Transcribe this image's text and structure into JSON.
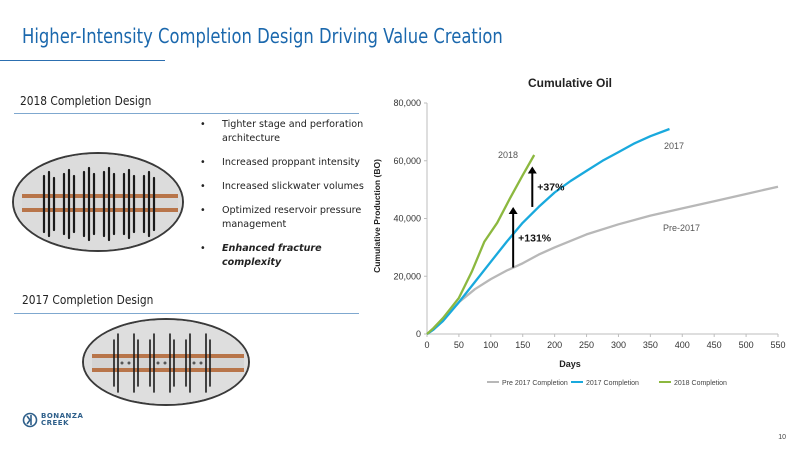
{
  "slide": {
    "title": "Higher-Intensity Completion Design Driving Value Creation",
    "section_2018": "2018 Completion Design",
    "section_2017": "2017 Completion Design",
    "bullets": [
      "Tighter stage and perforation architecture",
      "Increased proppant intensity",
      "Increased slickwater volumes",
      "Optimized reservoir pressure management",
      "Enhanced fracture complexity"
    ],
    "bullet_glyph": "•",
    "logo_line1": "BONANZA",
    "logo_line2": "CREEK",
    "page_number": "10",
    "accent_color": "#1b68ad"
  },
  "chart_data": {
    "type": "line",
    "title": "Cumulative Oil",
    "xlabel": "Days",
    "ylabel": "Cumulative Production (BO)",
    "xlim": [
      0,
      550
    ],
    "ylim": [
      0,
      80000
    ],
    "xticks": [
      "0",
      "50",
      "100",
      "150",
      "200",
      "250",
      "300",
      "350",
      "400",
      "450",
      "500",
      "550"
    ],
    "yticks": [
      "0",
      "20,000",
      "40,000",
      "60,000",
      "80,000"
    ],
    "xtick_values": [
      0,
      50,
      100,
      150,
      200,
      250,
      300,
      350,
      400,
      450,
      500,
      550
    ],
    "ytick_values": [
      0,
      20000,
      40000,
      60000,
      80000
    ],
    "grid": false,
    "legend_position": "bottom",
    "series": [
      {
        "name": "Pre 2017 Completion",
        "label": "Pre-2017",
        "color": "#b8b8b8",
        "x": [
          0,
          10,
          25,
          50,
          75,
          100,
          125,
          150,
          175,
          200,
          250,
          300,
          350,
          400,
          450,
          500,
          550
        ],
        "y": [
          0,
          1500,
          5000,
          11000,
          15500,
          19000,
          22000,
          24500,
          27500,
          30000,
          34500,
          38000,
          41000,
          43500,
          46000,
          48500,
          51000
        ]
      },
      {
        "name": "2017 Completion",
        "label": "2017",
        "color": "#19a9dd",
        "x": [
          0,
          10,
          25,
          50,
          75,
          100,
          125,
          150,
          175,
          200,
          225,
          250,
          275,
          300,
          325,
          350,
          380
        ],
        "y": [
          0,
          1500,
          4500,
          11000,
          18000,
          25000,
          32000,
          38500,
          44000,
          49000,
          53000,
          56500,
          60000,
          63000,
          66000,
          68500,
          71000
        ]
      },
      {
        "name": "2018 Completion",
        "label": "2018",
        "color": "#8cb83f",
        "x": [
          0,
          10,
          25,
          50,
          70,
          90,
          110,
          130,
          150,
          168
        ],
        "y": [
          0,
          2000,
          5500,
          12500,
          21500,
          32000,
          38500,
          47000,
          55000,
          62000
        ]
      }
    ],
    "annotations": [
      {
        "text": "+131%",
        "x": 135,
        "y_from": 23000,
        "y_to": 44000
      },
      {
        "text": "+37%",
        "x": 165,
        "y_from": 44000,
        "y_to": 58000
      }
    ]
  }
}
